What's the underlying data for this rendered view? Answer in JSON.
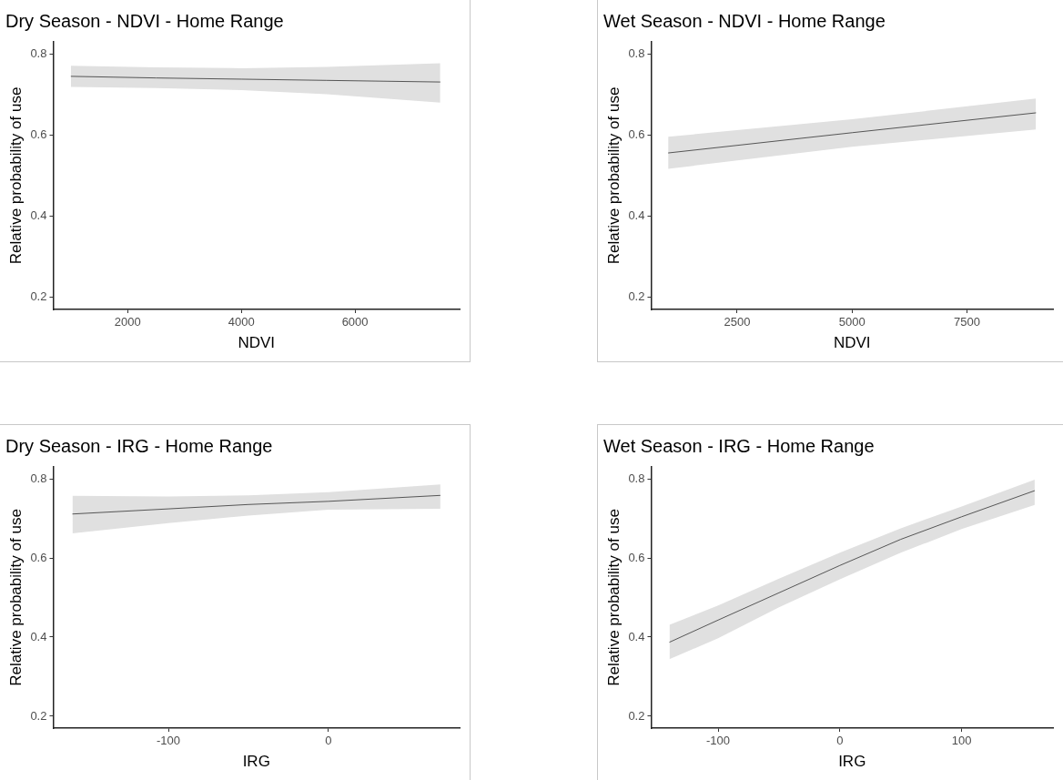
{
  "chart_data": [
    {
      "type": "line",
      "title": "Dry Season - NDVI - Home Range",
      "xlabel": "NDVI",
      "ylabel": "Relative probability of use",
      "xlim": [
        690,
        7840
      ],
      "ylim": [
        0.17,
        0.83
      ],
      "xticks": [
        2000,
        4000,
        6000
      ],
      "yticks": [
        0.2,
        0.4,
        0.6,
        0.8
      ],
      "marker": "none",
      "series": [
        {
          "color": "#555555",
          "x": [
            1000,
            2500,
            4000,
            5500,
            7500
          ],
          "values": [
            0.745,
            0.741,
            0.738,
            0.735,
            0.731
          ],
          "lower": [
            0.719,
            0.716,
            0.711,
            0.701,
            0.68
          ],
          "upper": [
            0.771,
            0.767,
            0.765,
            0.768,
            0.777
          ]
        }
      ]
    },
    {
      "type": "line",
      "title": "Wet Season - NDVI - Home Range",
      "xlabel": "NDVI",
      "ylabel": "Relative probability of use",
      "xlim": [
        630,
        9370
      ],
      "ylim": [
        0.17,
        0.83
      ],
      "xticks": [
        2500,
        5000,
        7500
      ],
      "yticks": [
        0.2,
        0.4,
        0.6,
        0.8
      ],
      "marker": "none",
      "series": [
        {
          "color": "#555555",
          "x": [
            1000,
            5000,
            9000
          ],
          "values": [
            0.556,
            0.606,
            0.655
          ],
          "lower": [
            0.517,
            0.571,
            0.614
          ],
          "upper": [
            0.596,
            0.639,
            0.69
          ]
        }
      ]
    },
    {
      "type": "line",
      "title": "Dry Season - IRG - Home Range",
      "xlabel": "IRG",
      "ylabel": "Relative probability of use",
      "xlim": [
        -172,
        82
      ],
      "ylim": [
        0.17,
        0.83
      ],
      "xticks": [
        -100,
        0
      ],
      "yticks": [
        0.2,
        0.4,
        0.6,
        0.8
      ],
      "marker": "none",
      "series": [
        {
          "color": "#555555",
          "x": [
            -160,
            -100,
            -50,
            0,
            70
          ],
          "values": [
            0.711,
            0.724,
            0.735,
            0.743,
            0.758
          ],
          "lower": [
            0.662,
            0.688,
            0.707,
            0.722,
            0.724
          ],
          "upper": [
            0.757,
            0.755,
            0.758,
            0.766,
            0.786
          ]
        }
      ]
    },
    {
      "type": "line",
      "title": "Wet Season - IRG - Home Range",
      "xlabel": "IRG",
      "ylabel": "Relative probability of use",
      "xlim": [
        -155,
        175
      ],
      "ylim": [
        0.17,
        0.83
      ],
      "xticks": [
        -100,
        0,
        100
      ],
      "yticks": [
        0.2,
        0.4,
        0.6,
        0.8
      ],
      "marker": "none",
      "series": [
        {
          "color": "#555555",
          "x": [
            -140,
            -100,
            -50,
            0,
            50,
            100,
            160
          ],
          "values": [
            0.387,
            0.443,
            0.512,
            0.581,
            0.647,
            0.704,
            0.77
          ],
          "lower": [
            0.344,
            0.397,
            0.475,
            0.546,
            0.613,
            0.673,
            0.734
          ],
          "upper": [
            0.431,
            0.48,
            0.548,
            0.613,
            0.675,
            0.73,
            0.798
          ]
        }
      ]
    }
  ]
}
